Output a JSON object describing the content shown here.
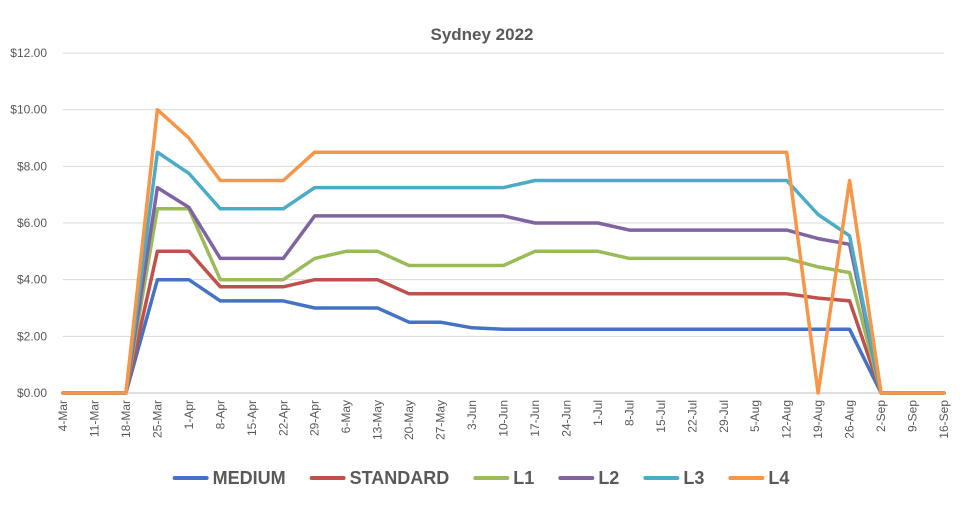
{
  "chart_data": {
    "type": "line",
    "title": "Sydney 2022",
    "xlabel": "",
    "ylabel": "",
    "ylim": [
      0,
      12
    ],
    "yticks": [
      "$0.00",
      "$2.00",
      "$4.00",
      "$6.00",
      "$8.00",
      "$10.00",
      "$12.00"
    ],
    "grid": true,
    "legend_position": "bottom",
    "categories": [
      "4-Mar",
      "11-Mar",
      "18-Mar",
      "25-Mar",
      "1-Apr",
      "8-Apr",
      "15-Apr",
      "22-Apr",
      "29-Apr",
      "6-May",
      "13-May",
      "20-May",
      "27-May",
      "3-Jun",
      "10-Jun",
      "17-Jun",
      "24-Jun",
      "1-Jul",
      "8-Jul",
      "15-Jul",
      "22-Jul",
      "29-Jul",
      "5-Aug",
      "12-Aug",
      "19-Aug",
      "26-Aug",
      "2-Sep",
      "9-Sep",
      "16-Sep"
    ],
    "series": [
      {
        "name": "MEDIUM",
        "color": "#4472c4",
        "values": [
          0,
          0,
          0,
          4.0,
          4.0,
          3.25,
          3.25,
          3.25,
          3.0,
          3.0,
          3.0,
          2.5,
          2.5,
          2.3,
          2.25,
          2.25,
          2.25,
          2.25,
          2.25,
          2.25,
          2.25,
          2.25,
          2.25,
          2.25,
          2.25,
          2.25,
          0,
          0,
          0
        ]
      },
      {
        "name": "STANDARD",
        "color": "#c0504d",
        "values": [
          0,
          0,
          0,
          5.0,
          5.0,
          3.75,
          3.75,
          3.75,
          4.0,
          4.0,
          4.0,
          3.5,
          3.5,
          3.5,
          3.5,
          3.5,
          3.5,
          3.5,
          3.5,
          3.5,
          3.5,
          3.5,
          3.5,
          3.5,
          3.35,
          3.25,
          0,
          0,
          0
        ]
      },
      {
        "name": "L1",
        "color": "#9bbb59",
        "values": [
          0,
          0,
          0,
          6.5,
          6.5,
          4.0,
          4.0,
          4.0,
          4.75,
          5.0,
          5.0,
          4.5,
          4.5,
          4.5,
          4.5,
          5.0,
          5.0,
          5.0,
          4.75,
          4.75,
          4.75,
          4.75,
          4.75,
          4.75,
          4.45,
          4.25,
          0,
          0,
          0
        ]
      },
      {
        "name": "L2",
        "color": "#8064a2",
        "values": [
          0,
          0,
          0,
          7.25,
          6.55,
          4.75,
          4.75,
          4.75,
          6.25,
          6.25,
          6.25,
          6.25,
          6.25,
          6.25,
          6.25,
          6.0,
          6.0,
          6.0,
          5.75,
          5.75,
          5.75,
          5.75,
          5.75,
          5.75,
          5.45,
          5.25,
          0,
          0,
          0
        ]
      },
      {
        "name": "L3",
        "color": "#4bacc6",
        "values": [
          0,
          0,
          0,
          8.5,
          7.75,
          6.5,
          6.5,
          6.5,
          7.25,
          7.25,
          7.25,
          7.25,
          7.25,
          7.25,
          7.25,
          7.5,
          7.5,
          7.5,
          7.5,
          7.5,
          7.5,
          7.5,
          7.5,
          7.5,
          6.3,
          5.55,
          0,
          0,
          0
        ]
      },
      {
        "name": "L4",
        "color": "#f79646",
        "values": [
          0,
          0,
          0,
          10.0,
          9.0,
          7.5,
          7.5,
          7.5,
          8.5,
          8.5,
          8.5,
          8.5,
          8.5,
          8.5,
          8.5,
          8.5,
          8.5,
          8.5,
          8.5,
          8.5,
          8.5,
          8.5,
          8.5,
          8.5,
          0,
          7.5,
          0,
          0,
          0
        ]
      }
    ]
  }
}
